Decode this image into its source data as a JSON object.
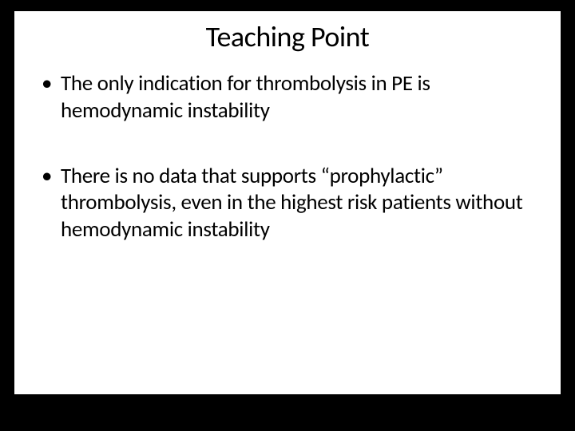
{
  "slide": {
    "title": "Teaching Point",
    "bullets": [
      "The only indication for thrombolysis in PE is hemodynamic instability",
      "There is no data that supports “prophylactic” thrombolysis, even in the highest risk patients without hemodynamic instability"
    ],
    "background_color": "#000000",
    "content_background": "#ffffff",
    "text_color": "#000000",
    "title_fontsize": 36,
    "bullet_fontsize": 27,
    "font_family": "Calibri"
  }
}
